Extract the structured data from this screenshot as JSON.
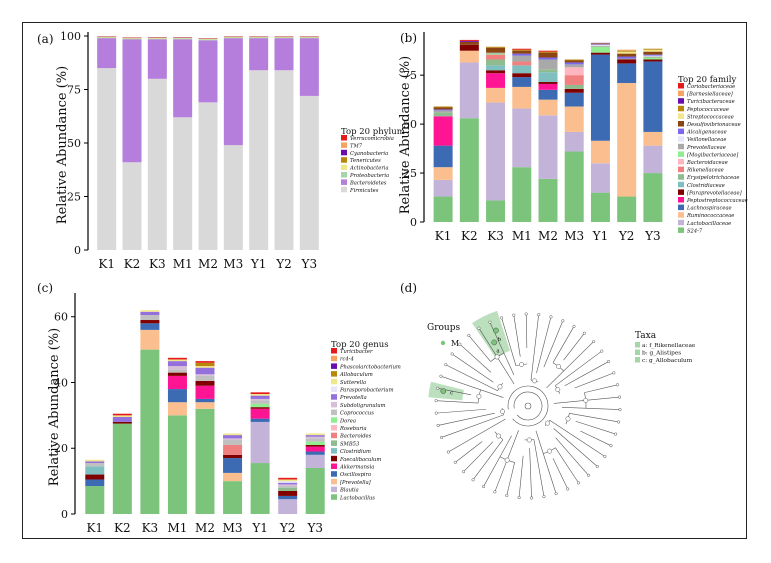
{
  "colors": {
    "Verrucomicrobia": "#e41a1c",
    "TM7": "#f4a460",
    "Cyanobacteria": "#6a0dad",
    "Tenericutes": "#b8860b",
    "Actinobacteria": "#f0e68c",
    "Proteobacteria": "#a5d6a7",
    "Bacteroidetes": "#b57edc",
    "Firmicutes": "#d9d9d9",
    "Coriobacteriaceae": "#e41a1c",
    "[Barnesiellaceae]": "#f4a460",
    "Turicibacteraceae": "#6a0dad",
    "Peptococcaceae": "#b8860b",
    "Streptococcaceae": "#f0e68c",
    "Desulfovibrionaceae": "#8b4513",
    "Alcaligenaceae": "#7b68ee",
    "Veillonellaceae": "#e6e6fa",
    "Prevotellaceae": "#a9a9a9",
    "[Mogibacteriaceae]": "#90ee90",
    "Bacteroidaceae": "#ffb6c1",
    "Rikenellaceae": "#f08080",
    "Erysipelotrichaceae": "#8fbc8f",
    "Clostridiaceae": "#7fbfbf",
    "[Paraprevotellaceae]": "#800000",
    "Peptostreptococcaceae": "#ff1493",
    "Lachnospiraceae": "#3d6bb3",
    "Ruminococcaceae": "#fbbf8f",
    "Lactobacillaceae": "#c4b3d9",
    "S24-7": "#7cc47c",
    "Turicibacter": "#e41a1c",
    "rc4-4": "#f4a460",
    "Phascolarctobacterium": "#6a0dad",
    "Allobaculum": "#b8860b",
    "Sutterella": "#f0e68c",
    "Parasporobacterium": "#e6e6fa",
    "Prevotella": "#9370db",
    "Subdoligranulum": "#d8bfd8",
    "Coprococcus": "#c0c0c0",
    "Dorea": "#90ee90",
    "Roseburia": "#ffb6c1",
    "Bacteroides": "#f08080",
    "SMB53": "#8fbc8f",
    "Clostridium": "#7fbfbf",
    "Faecalibaculum": "#800000",
    "Akkermansia": "#ff1493",
    "Oscillospira": "#3d6bb3",
    "[Prevotella]": "#fbbf8f",
    "Blautia": "#c4b3d9",
    "Lactobacillus": "#7cc47c",
    "groups_m": "#7cc47c",
    "clade_highlight": "#a5d6a7"
  },
  "panel_a": {
    "label": "(a)",
    "legend_title": "Top 20 phylum",
    "legend": [
      "Verrucomicrobia",
      "TM7",
      "Cyanobacteria",
      "Tenericutes",
      "Actinobacteria",
      "Proteobacteria",
      "Bacteroidetes",
      "Firmicutes"
    ]
  },
  "panel_b": {
    "label": "(b)",
    "legend_title": "Top 20 family",
    "legend": [
      "Coriobacteriaceae",
      "[Barnesiellaceae]",
      "Turicibacteraceae",
      "Peptococcaceae",
      "Streptococcaceae",
      "Desulfovibrionaceae",
      "Alcaligenaceae",
      "Veillonellaceae",
      "Prevotellaceae",
      "[Mogibacteriaceae]",
      "Bacteroidaceae",
      "Rikenellaceae",
      "Erysipelotrichaceae",
      "Clostridiaceae",
      "[Paraprevotellaceae]",
      "Peptostreptococcaceae",
      "Lachnospiraceae",
      "Ruminococcaceae",
      "Lactobacillaceae",
      "S24-7"
    ]
  },
  "panel_c": {
    "label": "(c)",
    "legend_title": "Top 20 genus",
    "legend": [
      "Turicibacter",
      "rc4-4",
      "Phascolarctobacterium",
      "Allobaculum",
      "Sutterella",
      "Parasporobacterium",
      "Prevotella",
      "Subdoligranulum",
      "Coprococcus",
      "Dorea",
      "Roseburia",
      "Bacteroides",
      "SMB53",
      "Clostridium",
      "Faecalibaculum",
      "Akkermansia",
      "Oscillospira",
      "[Prevotella]",
      "Blautia",
      "Lactobacillus"
    ]
  },
  "panel_d": {
    "label": "(d)",
    "groups_title": "Groups",
    "groups": [
      "M"
    ],
    "taxa_title": "Taxa",
    "taxa": [
      "a: f_Rikenellaceae",
      "b: g_Alistipes",
      "c: g_Allobaculum"
    ],
    "tree_labels": [
      "a",
      "b",
      "c"
    ]
  },
  "chart_data": [
    {
      "type": "bar",
      "stacked": true,
      "panel": "(a)",
      "categories": [
        "K1",
        "K2",
        "K3",
        "M1",
        "M2",
        "M3",
        "Y1",
        "Y2",
        "Y3"
      ],
      "ylabel": "Relative Abundance (%)",
      "ylim": [
        0,
        100
      ],
      "yticks": [
        0,
        25,
        50,
        75,
        100
      ],
      "legend_title": "Top 20 phylum",
      "series": [
        {
          "name": "Firmicutes",
          "values": [
            85,
            41,
            80,
            62,
            69,
            49,
            84,
            84,
            72
          ]
        },
        {
          "name": "Bacteroidetes",
          "values": [
            14,
            57.5,
            18.5,
            36.5,
            29,
            50,
            15,
            15,
            27
          ]
        },
        {
          "name": "Proteobacteria",
          "values": [
            0.3,
            0.3,
            0.3,
            0.4,
            0.4,
            0.3,
            0.3,
            0.3,
            0.3
          ]
        },
        {
          "name": "Actinobacteria",
          "values": [
            0.2,
            0.2,
            0.3,
            0.2,
            0.2,
            0.2,
            0.2,
            0.2,
            0.2
          ]
        },
        {
          "name": "Tenericutes",
          "values": [
            0.1,
            0.1,
            0.1,
            0.1,
            0.1,
            0.1,
            0.1,
            0.1,
            0.1
          ]
        },
        {
          "name": "Cyanobacteria",
          "values": [
            0.1,
            0.1,
            0.1,
            0.1,
            0.1,
            0.1,
            0.1,
            0.1,
            0.1
          ]
        },
        {
          "name": "TM7",
          "values": [
            0.1,
            0.1,
            0.1,
            0.1,
            0.1,
            0.1,
            0.1,
            0.1,
            0.1
          ]
        },
        {
          "name": "Verrucomicrobia",
          "values": [
            0.1,
            0.1,
            0.1,
            0.1,
            0.1,
            0.1,
            0.1,
            0.1,
            0.1
          ]
        }
      ]
    },
    {
      "type": "bar",
      "stacked": true,
      "panel": "(b)",
      "categories": [
        "K1",
        "K2",
        "K3",
        "M1",
        "M2",
        "M3",
        "Y1",
        "Y2",
        "Y3"
      ],
      "ylabel": "Relative Abundance (%)",
      "ylim": [
        0,
        95
      ],
      "yticks": [
        0,
        25,
        50,
        75
      ],
      "legend_title": "Top 20 family",
      "series": [
        {
          "name": "S24-7",
          "values": [
            13,
            53,
            11,
            28,
            22,
            36,
            15,
            13,
            25
          ]
        },
        {
          "name": "Lactobacillaceae",
          "values": [
            8.5,
            28.5,
            50,
            30,
            32.5,
            10,
            15,
            0,
            14
          ]
        },
        {
          "name": "Ruminococcaceae",
          "values": [
            6.5,
            6,
            7.5,
            11,
            8,
            13,
            11.5,
            58,
            7
          ]
        },
        {
          "name": "Lachnospiraceae",
          "values": [
            11,
            0,
            0,
            5,
            5,
            7,
            44,
            10,
            36
          ]
        },
        {
          "name": "Peptostreptococcaceae",
          "values": [
            15,
            0,
            7.5,
            0,
            3,
            0,
            0,
            0,
            0
          ]
        },
        {
          "name": "[Paraprevotellaceae]",
          "values": [
            0,
            3,
            1.5,
            2,
            1,
            2,
            1,
            2,
            1
          ]
        },
        {
          "name": "Clostridiaceae",
          "values": [
            0,
            0,
            2.5,
            4,
            5,
            0,
            0,
            0,
            0
          ]
        },
        {
          "name": "Erysipelotrichaceae",
          "values": [
            2,
            0,
            3,
            0,
            1.5,
            2,
            0,
            0,
            0
          ]
        },
        {
          "name": "Rikenellaceae",
          "values": [
            0,
            0,
            2.5,
            2,
            0,
            5,
            0,
            0,
            0
          ]
        },
        {
          "name": "Bacteroidaceae",
          "values": [
            0,
            0,
            0,
            0,
            0,
            4,
            0,
            0,
            0
          ]
        },
        {
          "name": "[Mogibacteriaceae]",
          "values": [
            0,
            0,
            0.5,
            0,
            0,
            0,
            3,
            0,
            1
          ]
        },
        {
          "name": "Prevotellaceae",
          "values": [
            1,
            0,
            0.5,
            3,
            5,
            1.5,
            0.5,
            0.5,
            0.5
          ]
        },
        {
          "name": "Veillonellaceae",
          "values": [
            0,
            0,
            0,
            0,
            0,
            0,
            0.5,
            0,
            0.5
          ]
        },
        {
          "name": "Alcaligenaceae",
          "values": [
            0.5,
            0,
            0,
            1,
            1,
            1,
            0.3,
            1,
            0.5
          ]
        },
        {
          "name": "Desulfovibrionaceae",
          "values": [
            1,
            1.5,
            2.5,
            1.5,
            2.5,
            1,
            0.3,
            1.5,
            1.5
          ]
        },
        {
          "name": "Streptococcaceae",
          "values": [
            0,
            0,
            0,
            0,
            0,
            0,
            0,
            1,
            1
          ]
        },
        {
          "name": "Peptococcaceae",
          "values": [
            0.5,
            0,
            0.5,
            0.5,
            0.5,
            0.5,
            0.2,
            0.5,
            0.5
          ]
        },
        {
          "name": "Turicibacteraceae",
          "values": [
            0,
            0.5,
            0,
            0,
            0,
            0,
            0.2,
            0,
            0
          ]
        },
        {
          "name": "[Barnesiellaceae]",
          "values": [
            0,
            0,
            0,
            0,
            0,
            0,
            0,
            0.5,
            0
          ]
        },
        {
          "name": "Coriobacteriaceae",
          "values": [
            0,
            0.5,
            0,
            0.5,
            0.5,
            0,
            0,
            0,
            0
          ]
        }
      ]
    },
    {
      "type": "bar",
      "stacked": true,
      "panel": "(c)",
      "categories": [
        "K1",
        "K2",
        "K3",
        "M1",
        "M2",
        "M3",
        "Y1",
        "Y2",
        "Y3"
      ],
      "ylabel": "Relative Abundance (%)",
      "ylim": [
        0,
        66
      ],
      "yticks": [
        0,
        20,
        40,
        60
      ],
      "legend_title": "Top 20 genus",
      "series": [
        {
          "name": "Lactobacillus",
          "values": [
            8.5,
            27.5,
            50,
            30,
            32,
            10,
            15.5,
            0,
            14
          ]
        },
        {
          "name": "Blautia",
          "values": [
            0,
            0,
            0,
            0,
            0,
            0,
            12.5,
            4.5,
            4
          ]
        },
        {
          "name": "[Prevotella]",
          "values": [
            0,
            0,
            6,
            4,
            2,
            2.5,
            0,
            0,
            0
          ]
        },
        {
          "name": "Oscillospira",
          "values": [
            2,
            0,
            2,
            4,
            1,
            4.5,
            1,
            1,
            1
          ]
        },
        {
          "name": "Akkermansia",
          "values": [
            0,
            0,
            0,
            4,
            4,
            0,
            3,
            0,
            1.5
          ]
        },
        {
          "name": "Faecalibaculum",
          "values": [
            1.5,
            0.5,
            1,
            1,
            1.5,
            1,
            0.5,
            1.5,
            0.5
          ]
        },
        {
          "name": "Clostridium",
          "values": [
            2.5,
            0,
            0,
            0,
            0,
            0,
            0,
            0,
            0
          ]
        },
        {
          "name": "SMB53",
          "values": [
            0,
            0,
            0,
            0,
            0,
            0,
            0,
            1,
            0
          ]
        },
        {
          "name": "Bacteroides",
          "values": [
            0,
            0,
            0,
            0,
            0,
            3,
            0,
            0,
            0
          ]
        },
        {
          "name": "Roseburia",
          "values": [
            0,
            0,
            0,
            0,
            0,
            0,
            0,
            0,
            0
          ]
        },
        {
          "name": "Dorea",
          "values": [
            0,
            0,
            0,
            0,
            0,
            0,
            1,
            0,
            1
          ]
        },
        {
          "name": "Coprococcus",
          "values": [
            1,
            0,
            1.5,
            1,
            1.5,
            1.5,
            1,
            0.5,
            1
          ]
        },
        {
          "name": "Subdoligranulum",
          "values": [
            0,
            0,
            0,
            1,
            0.5,
            0.5,
            0.5,
            0.5,
            0.5
          ]
        },
        {
          "name": "Prevotella",
          "values": [
            0.5,
            1.5,
            1,
            1.5,
            2,
            1,
            1,
            0.5,
            0.5
          ]
        },
        {
          "name": "Parasporobacterium",
          "values": [
            0,
            0,
            0,
            0,
            0,
            0,
            0,
            0.5,
            0
          ]
        },
        {
          "name": "Sutterella",
          "values": [
            0.5,
            0.5,
            0.5,
            0.5,
            0.5,
            0.5,
            0.5,
            0.5,
            0.5
          ]
        },
        {
          "name": "Allobaculum",
          "values": [
            0,
            0,
            0,
            0,
            1,
            0,
            0,
            0,
            0
          ]
        },
        {
          "name": "Phascolarctobacterium",
          "values": [
            0,
            0,
            0,
            0,
            0,
            0,
            0,
            0,
            0
          ]
        },
        {
          "name": "rc4-4",
          "values": [
            0,
            0,
            0,
            0,
            0,
            0,
            0,
            0,
            0
          ]
        },
        {
          "name": "Turicibacter",
          "values": [
            0,
            0.5,
            0,
            0.5,
            0.5,
            0,
            0.5,
            0.5,
            0
          ]
        }
      ]
    }
  ]
}
